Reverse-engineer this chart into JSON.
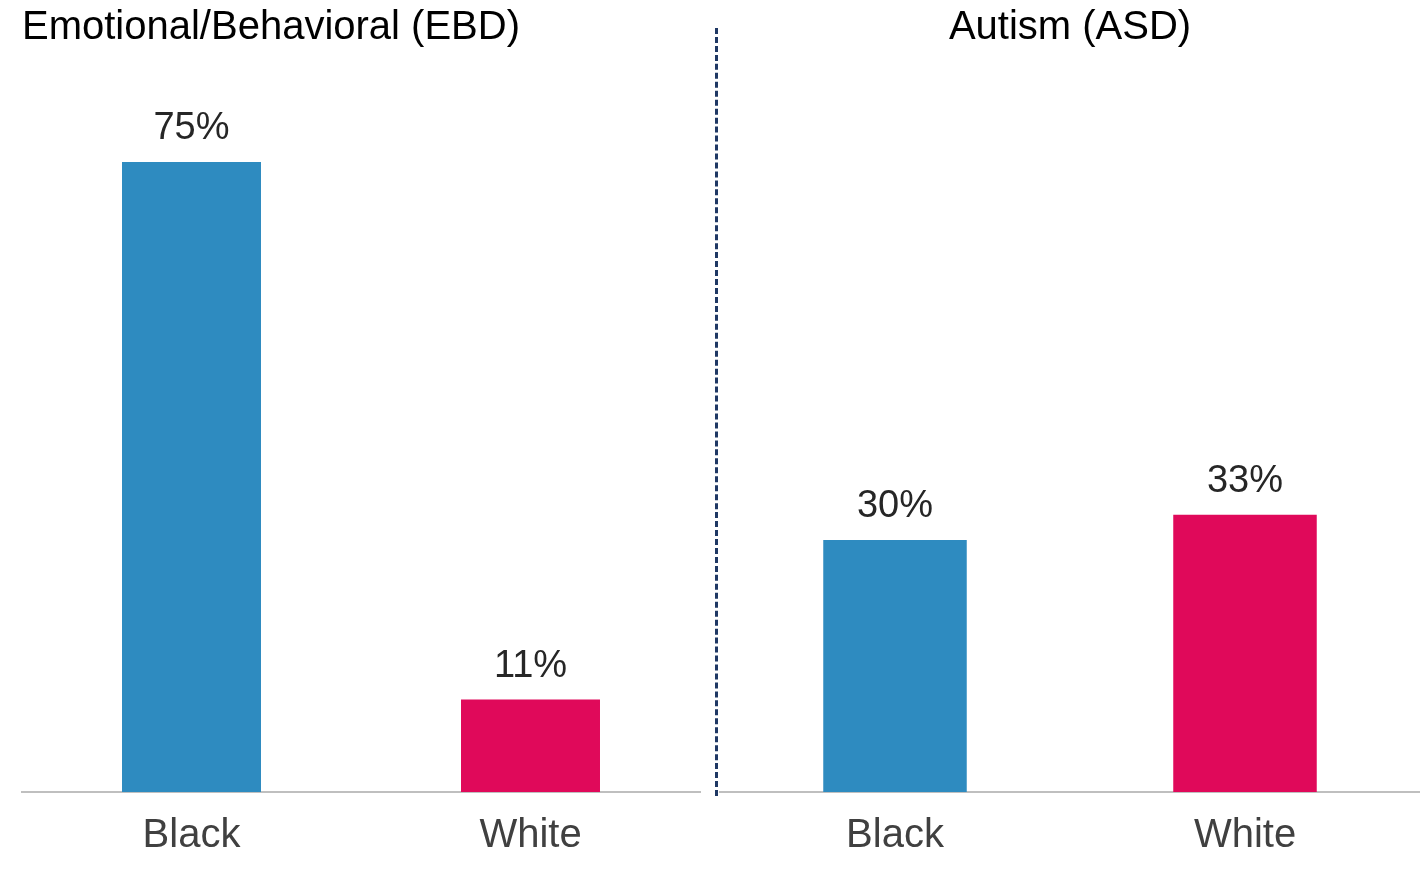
{
  "chart_data": [
    {
      "type": "bar",
      "title": "Emotional/Behavioral (EBD)",
      "categories": [
        "Black",
        "White"
      ],
      "values": [
        75,
        11
      ],
      "colors": [
        "#2e8bc0",
        "#e0095a"
      ],
      "value_labels": [
        "75%",
        "11%"
      ],
      "tick_labels": "x",
      "grid": false,
      "legend": false
    },
    {
      "type": "bar",
      "title": "Autism (ASD)",
      "categories": [
        "Black",
        "White"
      ],
      "values": [
        30,
        33
      ],
      "colors": [
        "#2e8bc0",
        "#e0095a"
      ],
      "value_labels": [
        "30%",
        "33%"
      ],
      "tick_labels": "x",
      "grid": false,
      "legend": false
    }
  ]
}
